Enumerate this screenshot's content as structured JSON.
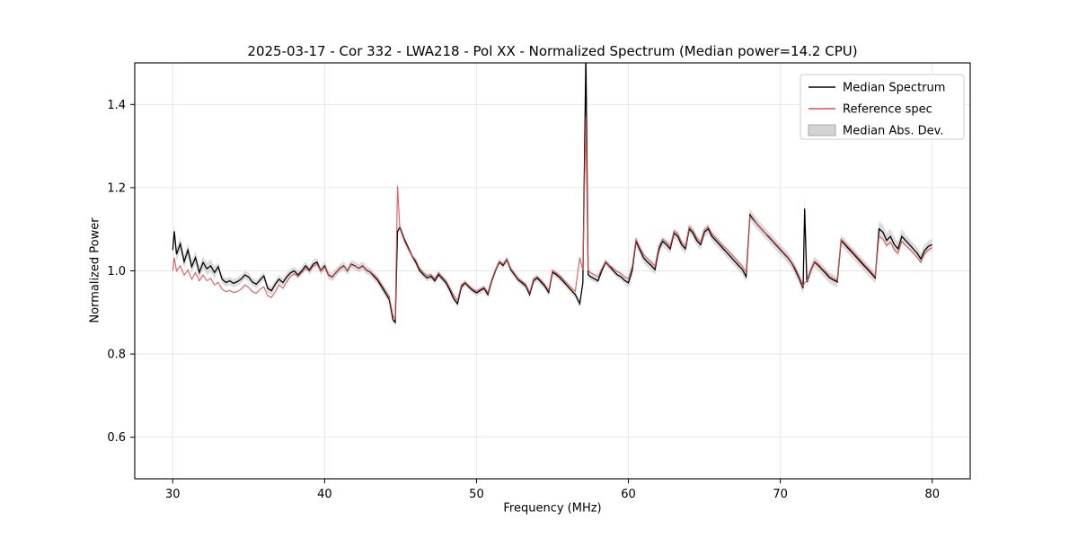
{
  "figure": {
    "title": "2025-03-17 - Cor 332 - LWA218 - Pol XX - Normalized Spectrum (Median power=14.2 CPU)",
    "xlabel": "Frequency (MHz)",
    "ylabel": "Normalized Power"
  },
  "chart_data": {
    "type": "line",
    "title": "2025-03-17 - Cor 332 - LWA218 - Pol XX - Normalized Spectrum (Median power=14.2 CPU)",
    "xlabel": "Frequency (MHz)",
    "ylabel": "Normalized Power",
    "xlim": [
      27.5,
      82.5
    ],
    "ylim": [
      0.5,
      1.5
    ],
    "xticks": [
      30,
      40,
      50,
      60,
      70,
      80
    ],
    "xtick_labels": [
      "30",
      "40",
      "50",
      "60",
      "70",
      "80"
    ],
    "yticks": [
      0.6,
      0.8,
      1.0,
      1.2,
      1.4
    ],
    "ytick_labels": [
      "0.6",
      "0.8",
      "1.0",
      "1.2",
      "1.4"
    ],
    "grid": true,
    "legend_position": "upper right",
    "series": [
      {
        "name": "Median Spectrum",
        "type": "line",
        "color": "#000000"
      },
      {
        "name": "Reference spec",
        "type": "line",
        "color": "#dd5555"
      },
      {
        "name": "Median Abs. Dev.",
        "type": "band",
        "color": "#c0c0c0"
      }
    ],
    "points_format": [
      "frequency_mhz",
      "median_spectrum",
      "reference_spec"
    ],
    "points": [
      [
        30.0,
        1.05,
        1.0
      ],
      [
        30.1,
        1.095,
        1.032
      ],
      [
        30.25,
        1.04,
        1.0
      ],
      [
        30.5,
        1.065,
        1.012
      ],
      [
        30.75,
        1.022,
        0.99
      ],
      [
        31.0,
        1.05,
        1.002
      ],
      [
        31.25,
        1.01,
        0.98
      ],
      [
        31.5,
        1.032,
        0.996
      ],
      [
        31.75,
        0.996,
        0.976
      ],
      [
        32.0,
        1.02,
        0.99
      ],
      [
        32.25,
        1.005,
        0.976
      ],
      [
        32.5,
        1.012,
        0.982
      ],
      [
        32.75,
        0.996,
        0.966
      ],
      [
        33.0,
        1.01,
        0.972
      ],
      [
        33.25,
        0.98,
        0.956
      ],
      [
        33.5,
        0.972,
        0.95
      ],
      [
        33.75,
        0.976,
        0.953
      ],
      [
        34.0,
        0.97,
        0.948
      ],
      [
        34.25,
        0.974,
        0.95
      ],
      [
        34.5,
        0.98,
        0.956
      ],
      [
        34.75,
        0.99,
        0.966
      ],
      [
        35.0,
        0.985,
        0.96
      ],
      [
        35.25,
        0.973,
        0.95
      ],
      [
        35.5,
        0.968,
        0.946
      ],
      [
        35.75,
        0.978,
        0.956
      ],
      [
        36.0,
        0.988,
        0.962
      ],
      [
        36.25,
        0.958,
        0.94
      ],
      [
        36.5,
        0.952,
        0.936
      ],
      [
        36.75,
        0.968,
        0.95
      ],
      [
        37.0,
        0.98,
        0.966
      ],
      [
        37.25,
        0.972,
        0.958
      ],
      [
        37.5,
        0.985,
        0.973
      ],
      [
        37.75,
        0.995,
        0.986
      ],
      [
        38.0,
        1.0,
        0.993
      ],
      [
        38.25,
        0.99,
        0.986
      ],
      [
        38.5,
        1.0,
        0.996
      ],
      [
        38.75,
        1.012,
        1.006
      ],
      [
        39.0,
        1.002,
        0.999
      ],
      [
        39.25,
        1.016,
        1.011
      ],
      [
        39.5,
        1.021,
        1.016
      ],
      [
        39.75,
        1.0,
        0.999
      ],
      [
        40.0,
        1.012,
        1.009
      ],
      [
        40.25,
        0.99,
        0.989
      ],
      [
        40.5,
        0.985,
        0.984
      ],
      [
        40.75,
        0.996,
        0.995
      ],
      [
        41.0,
        1.006,
        1.005
      ],
      [
        41.25,
        1.012,
        1.011
      ],
      [
        41.5,
        1.0,
        1.001
      ],
      [
        41.75,
        1.016,
        1.015
      ],
      [
        42.0,
        1.012,
        1.011
      ],
      [
        42.25,
        1.006,
        1.007
      ],
      [
        42.5,
        1.012,
        1.013
      ],
      [
        42.75,
        1.002,
        1.003
      ],
      [
        43.0,
        0.997,
        0.998
      ],
      [
        43.25,
        0.987,
        0.99
      ],
      [
        43.5,
        0.977,
        0.981
      ],
      [
        43.75,
        0.962,
        0.967
      ],
      [
        44.0,
        0.947,
        0.953
      ],
      [
        44.25,
        0.932,
        0.939
      ],
      [
        44.5,
        0.882,
        0.892
      ],
      [
        44.65,
        0.876,
        0.886
      ],
      [
        44.8,
        1.095,
        1.205
      ],
      [
        44.95,
        1.105,
        1.102
      ],
      [
        45.25,
        1.076,
        1.072
      ],
      [
        45.5,
        1.056,
        1.052
      ],
      [
        45.75,
        1.036,
        1.036
      ],
      [
        46.0,
        1.021,
        1.026
      ],
      [
        46.25,
        1.001,
        1.006
      ],
      [
        46.5,
        0.991,
        0.996
      ],
      [
        46.75,
        0.983,
        0.989
      ],
      [
        47.0,
        0.987,
        0.991
      ],
      [
        47.25,
        0.976,
        0.981
      ],
      [
        47.5,
        0.991,
        0.996
      ],
      [
        47.75,
        0.981,
        0.986
      ],
      [
        48.0,
        0.971,
        0.976
      ],
      [
        48.25,
        0.953,
        0.959
      ],
      [
        48.5,
        0.933,
        0.941
      ],
      [
        48.75,
        0.921,
        0.929
      ],
      [
        49.0,
        0.961,
        0.966
      ],
      [
        49.25,
        0.971,
        0.973
      ],
      [
        49.5,
        0.961,
        0.964
      ],
      [
        49.75,
        0.953,
        0.956
      ],
      [
        50.0,
        0.947,
        0.951
      ],
      [
        50.25,
        0.953,
        0.956
      ],
      [
        50.5,
        0.958,
        0.961
      ],
      [
        50.75,
        0.943,
        0.948
      ],
      [
        51.0,
        0.976,
        0.979
      ],
      [
        51.25,
        1.001,
        1.003
      ],
      [
        51.5,
        1.021,
        1.023
      ],
      [
        51.75,
        1.013,
        1.016
      ],
      [
        52.0,
        1.027,
        1.029
      ],
      [
        52.25,
        1.003,
        1.006
      ],
      [
        52.5,
        0.991,
        0.994
      ],
      [
        52.75,
        0.978,
        0.981
      ],
      [
        53.0,
        0.971,
        0.975
      ],
      [
        53.25,
        0.963,
        0.967
      ],
      [
        53.5,
        0.943,
        0.948
      ],
      [
        53.75,
        0.976,
        0.981
      ],
      [
        54.0,
        0.983,
        0.986
      ],
      [
        54.25,
        0.973,
        0.977
      ],
      [
        54.5,
        0.963,
        0.967
      ],
      [
        54.75,
        0.948,
        0.953
      ],
      [
        55.0,
        0.997,
        1.001
      ],
      [
        55.25,
        0.991,
        0.995
      ],
      [
        55.5,
        0.983,
        0.988
      ],
      [
        55.75,
        0.973,
        0.978
      ],
      [
        56.0,
        0.963,
        0.969
      ],
      [
        56.25,
        0.953,
        0.959
      ],
      [
        56.5,
        0.943,
        0.951
      ],
      [
        56.8,
        0.921,
        1.032
      ],
      [
        57.0,
        0.971,
        1.002
      ],
      [
        57.2,
        1.52,
        1.37
      ],
      [
        57.35,
        0.991,
        1.001
      ],
      [
        57.5,
        0.986,
        0.996
      ],
      [
        57.75,
        0.981,
        0.991
      ],
      [
        58.0,
        0.976,
        0.986
      ],
      [
        58.25,
        1.001,
        1.006
      ],
      [
        58.5,
        1.021,
        1.023
      ],
      [
        58.75,
        1.011,
        1.013
      ],
      [
        59.0,
        1.001,
        1.006
      ],
      [
        59.25,
        0.991,
        0.999
      ],
      [
        59.5,
        0.986,
        0.994
      ],
      [
        59.75,
        0.977,
        0.986
      ],
      [
        60.0,
        0.971,
        0.981
      ],
      [
        60.25,
        1.001,
        1.011
      ],
      [
        60.5,
        1.071,
        1.076
      ],
      [
        60.75,
        1.051,
        1.056
      ],
      [
        61.0,
        1.031,
        1.039
      ],
      [
        61.25,
        1.021,
        1.029
      ],
      [
        61.5,
        1.013,
        1.021
      ],
      [
        61.75,
        1.003,
        1.011
      ],
      [
        62.0,
        1.051,
        1.059
      ],
      [
        62.25,
        1.071,
        1.076
      ],
      [
        62.5,
        1.063,
        1.069
      ],
      [
        62.75,
        1.053,
        1.059
      ],
      [
        63.0,
        1.091,
        1.096
      ],
      [
        63.25,
        1.083,
        1.089
      ],
      [
        63.5,
        1.063,
        1.069
      ],
      [
        63.75,
        1.053,
        1.059
      ],
      [
        64.0,
        1.101,
        1.106
      ],
      [
        64.25,
        1.091,
        1.097
      ],
      [
        64.5,
        1.073,
        1.079
      ],
      [
        64.75,
        1.063,
        1.069
      ],
      [
        65.0,
        1.093,
        1.099
      ],
      [
        65.25,
        1.101,
        1.106
      ],
      [
        65.5,
        1.083,
        1.089
      ],
      [
        65.75,
        1.073,
        1.079
      ],
      [
        66.0,
        1.063,
        1.069
      ],
      [
        66.25,
        1.053,
        1.059
      ],
      [
        66.5,
        1.043,
        1.051
      ],
      [
        66.75,
        1.033,
        1.041
      ],
      [
        67.0,
        1.023,
        1.031
      ],
      [
        67.25,
        1.013,
        1.021
      ],
      [
        67.5,
        1.003,
        1.011
      ],
      [
        67.75,
        0.986,
        0.996
      ],
      [
        68.0,
        1.135,
        1.131
      ],
      [
        68.25,
        1.123,
        1.121
      ],
      [
        68.5,
        1.111,
        1.111
      ],
      [
        68.75,
        1.101,
        1.101
      ],
      [
        69.0,
        1.091,
        1.091
      ],
      [
        69.25,
        1.081,
        1.083
      ],
      [
        69.5,
        1.071,
        1.073
      ],
      [
        69.75,
        1.061,
        1.063
      ],
      [
        70.0,
        1.051,
        1.053
      ],
      [
        70.25,
        1.041,
        1.043
      ],
      [
        70.5,
        1.031,
        1.033
      ],
      [
        70.75,
        1.019,
        1.021
      ],
      [
        71.0,
        1.001,
        1.006
      ],
      [
        71.25,
        0.981,
        0.986
      ],
      [
        71.5,
        0.958,
        0.963
      ],
      [
        71.6,
        1.15,
        0.971
      ],
      [
        71.75,
        0.973,
        0.976
      ],
      [
        72.0,
        1.001,
        1.003
      ],
      [
        72.25,
        1.021,
        1.023
      ],
      [
        72.5,
        1.013,
        1.016
      ],
      [
        72.75,
        1.003,
        1.006
      ],
      [
        73.0,
        0.993,
        0.997
      ],
      [
        73.25,
        0.983,
        0.987
      ],
      [
        73.5,
        0.978,
        0.981
      ],
      [
        73.75,
        0.973,
        0.977
      ],
      [
        74.0,
        1.073,
        1.076
      ],
      [
        74.25,
        1.063,
        1.067
      ],
      [
        74.5,
        1.053,
        1.057
      ],
      [
        74.75,
        1.043,
        1.047
      ],
      [
        75.0,
        1.033,
        1.037
      ],
      [
        75.25,
        1.023,
        1.027
      ],
      [
        75.5,
        1.013,
        1.017
      ],
      [
        75.75,
        1.003,
        1.007
      ],
      [
        76.0,
        0.993,
        0.997
      ],
      [
        76.25,
        0.983,
        0.987
      ],
      [
        76.5,
        1.101,
        1.083
      ],
      [
        76.75,
        1.093,
        1.076
      ],
      [
        77.0,
        1.073,
        1.061
      ],
      [
        77.25,
        1.083,
        1.069
      ],
      [
        77.5,
        1.063,
        1.051
      ],
      [
        77.75,
        1.053,
        1.043
      ],
      [
        78.0,
        1.083,
        1.071
      ],
      [
        78.25,
        1.073,
        1.061
      ],
      [
        78.5,
        1.063,
        1.053
      ],
      [
        78.75,
        1.053,
        1.043
      ],
      [
        79.0,
        1.043,
        1.033
      ],
      [
        79.25,
        1.029,
        1.021
      ],
      [
        79.5,
        1.049,
        1.041
      ],
      [
        79.75,
        1.059,
        1.051
      ],
      [
        80.0,
        1.063,
        1.056
      ]
    ],
    "mad_segments": [
      {
        "from": 30.0,
        "to": 33.0,
        "mad": 0.015
      },
      {
        "from": 33.0,
        "to": 44.4,
        "mad": 0.01
      },
      {
        "from": 44.4,
        "to": 60.0,
        "mad": 0.008
      },
      {
        "from": 60.0,
        "to": 68.0,
        "mad": 0.012
      },
      {
        "from": 68.0,
        "to": 71.55,
        "mad": 0.013
      },
      {
        "from": 71.55,
        "to": 71.7,
        "mad": 0.03
      },
      {
        "from": 71.7,
        "to": 76.4,
        "mad": 0.013
      },
      {
        "from": 76.4,
        "to": 78.2,
        "mad": 0.018
      },
      {
        "from": 78.2,
        "to": 80.01,
        "mad": 0.014
      }
    ]
  }
}
